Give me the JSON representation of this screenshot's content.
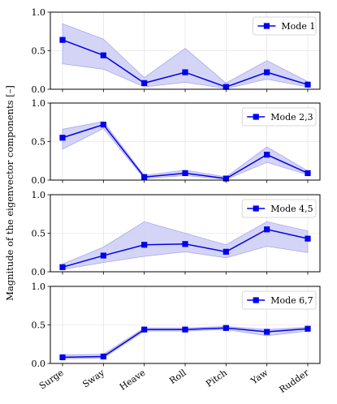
{
  "ylabel": "Magnitude of the eigenvector components [–]",
  "line_color": "#0000ee",
  "band_color": "#ccccf6",
  "band_edge_color": "#aaaaee",
  "chart_data": [
    {
      "type": "line",
      "categories": [
        "Surge",
        "Sway",
        "Heave",
        "Roll",
        "Pitch",
        "Yaw",
        "Rudder"
      ],
      "series": [
        {
          "name": "Mode 1",
          "values": [
            0.64,
            0.44,
            0.08,
            0.22,
            0.03,
            0.22,
            0.06
          ]
        }
      ],
      "band_upper": [
        0.85,
        0.65,
        0.15,
        0.53,
        0.08,
        0.37,
        0.1
      ],
      "band_lower": [
        0.33,
        0.26,
        0.03,
        0.09,
        0.01,
        0.13,
        0.03
      ],
      "ylim": [
        0,
        1
      ],
      "yticks": [
        "0.0",
        "0.5",
        "1.0"
      ],
      "legend": "upper right",
      "grid": true
    },
    {
      "type": "line",
      "categories": [
        "Surge",
        "Sway",
        "Heave",
        "Roll",
        "Pitch",
        "Yaw",
        "Rudder"
      ],
      "series": [
        {
          "name": "Mode 2,3",
          "values": [
            0.55,
            0.72,
            0.04,
            0.09,
            0.02,
            0.33,
            0.09
          ]
        }
      ],
      "band_upper": [
        0.66,
        0.76,
        0.06,
        0.13,
        0.04,
        0.43,
        0.12
      ],
      "band_lower": [
        0.4,
        0.67,
        0.02,
        0.06,
        0.01,
        0.23,
        0.07
      ],
      "ylim": [
        0,
        1
      ],
      "yticks": [
        "0.0",
        "0.5",
        "1.0"
      ],
      "legend": "upper right",
      "grid": true
    },
    {
      "type": "line",
      "categories": [
        "Surge",
        "Sway",
        "Heave",
        "Roll",
        "Pitch",
        "Yaw",
        "Rudder"
      ],
      "series": [
        {
          "name": "Mode 4,5",
          "values": [
            0.06,
            0.21,
            0.35,
            0.36,
            0.26,
            0.55,
            0.43
          ]
        }
      ],
      "band_upper": [
        0.1,
        0.32,
        0.65,
        0.5,
        0.35,
        0.65,
        0.53
      ],
      "band_lower": [
        0.03,
        0.12,
        0.2,
        0.26,
        0.18,
        0.33,
        0.25
      ],
      "ylim": [
        0,
        1
      ],
      "yticks": [
        "0.0",
        "0.5",
        "1.0"
      ],
      "legend": "upper right",
      "grid": true
    },
    {
      "type": "line",
      "categories": [
        "Surge",
        "Sway",
        "Heave",
        "Roll",
        "Pitch",
        "Yaw",
        "Rudder"
      ],
      "series": [
        {
          "name": "Mode 6,7",
          "values": [
            0.08,
            0.09,
            0.44,
            0.44,
            0.46,
            0.41,
            0.45
          ]
        }
      ],
      "band_upper": [
        0.11,
        0.12,
        0.46,
        0.46,
        0.48,
        0.44,
        0.47
      ],
      "band_lower": [
        0.06,
        0.07,
        0.42,
        0.42,
        0.44,
        0.36,
        0.42
      ],
      "ylim": [
        0,
        1
      ],
      "yticks": [
        "0.0",
        "0.5",
        "1.0"
      ],
      "legend": "upper right",
      "grid": true
    }
  ]
}
